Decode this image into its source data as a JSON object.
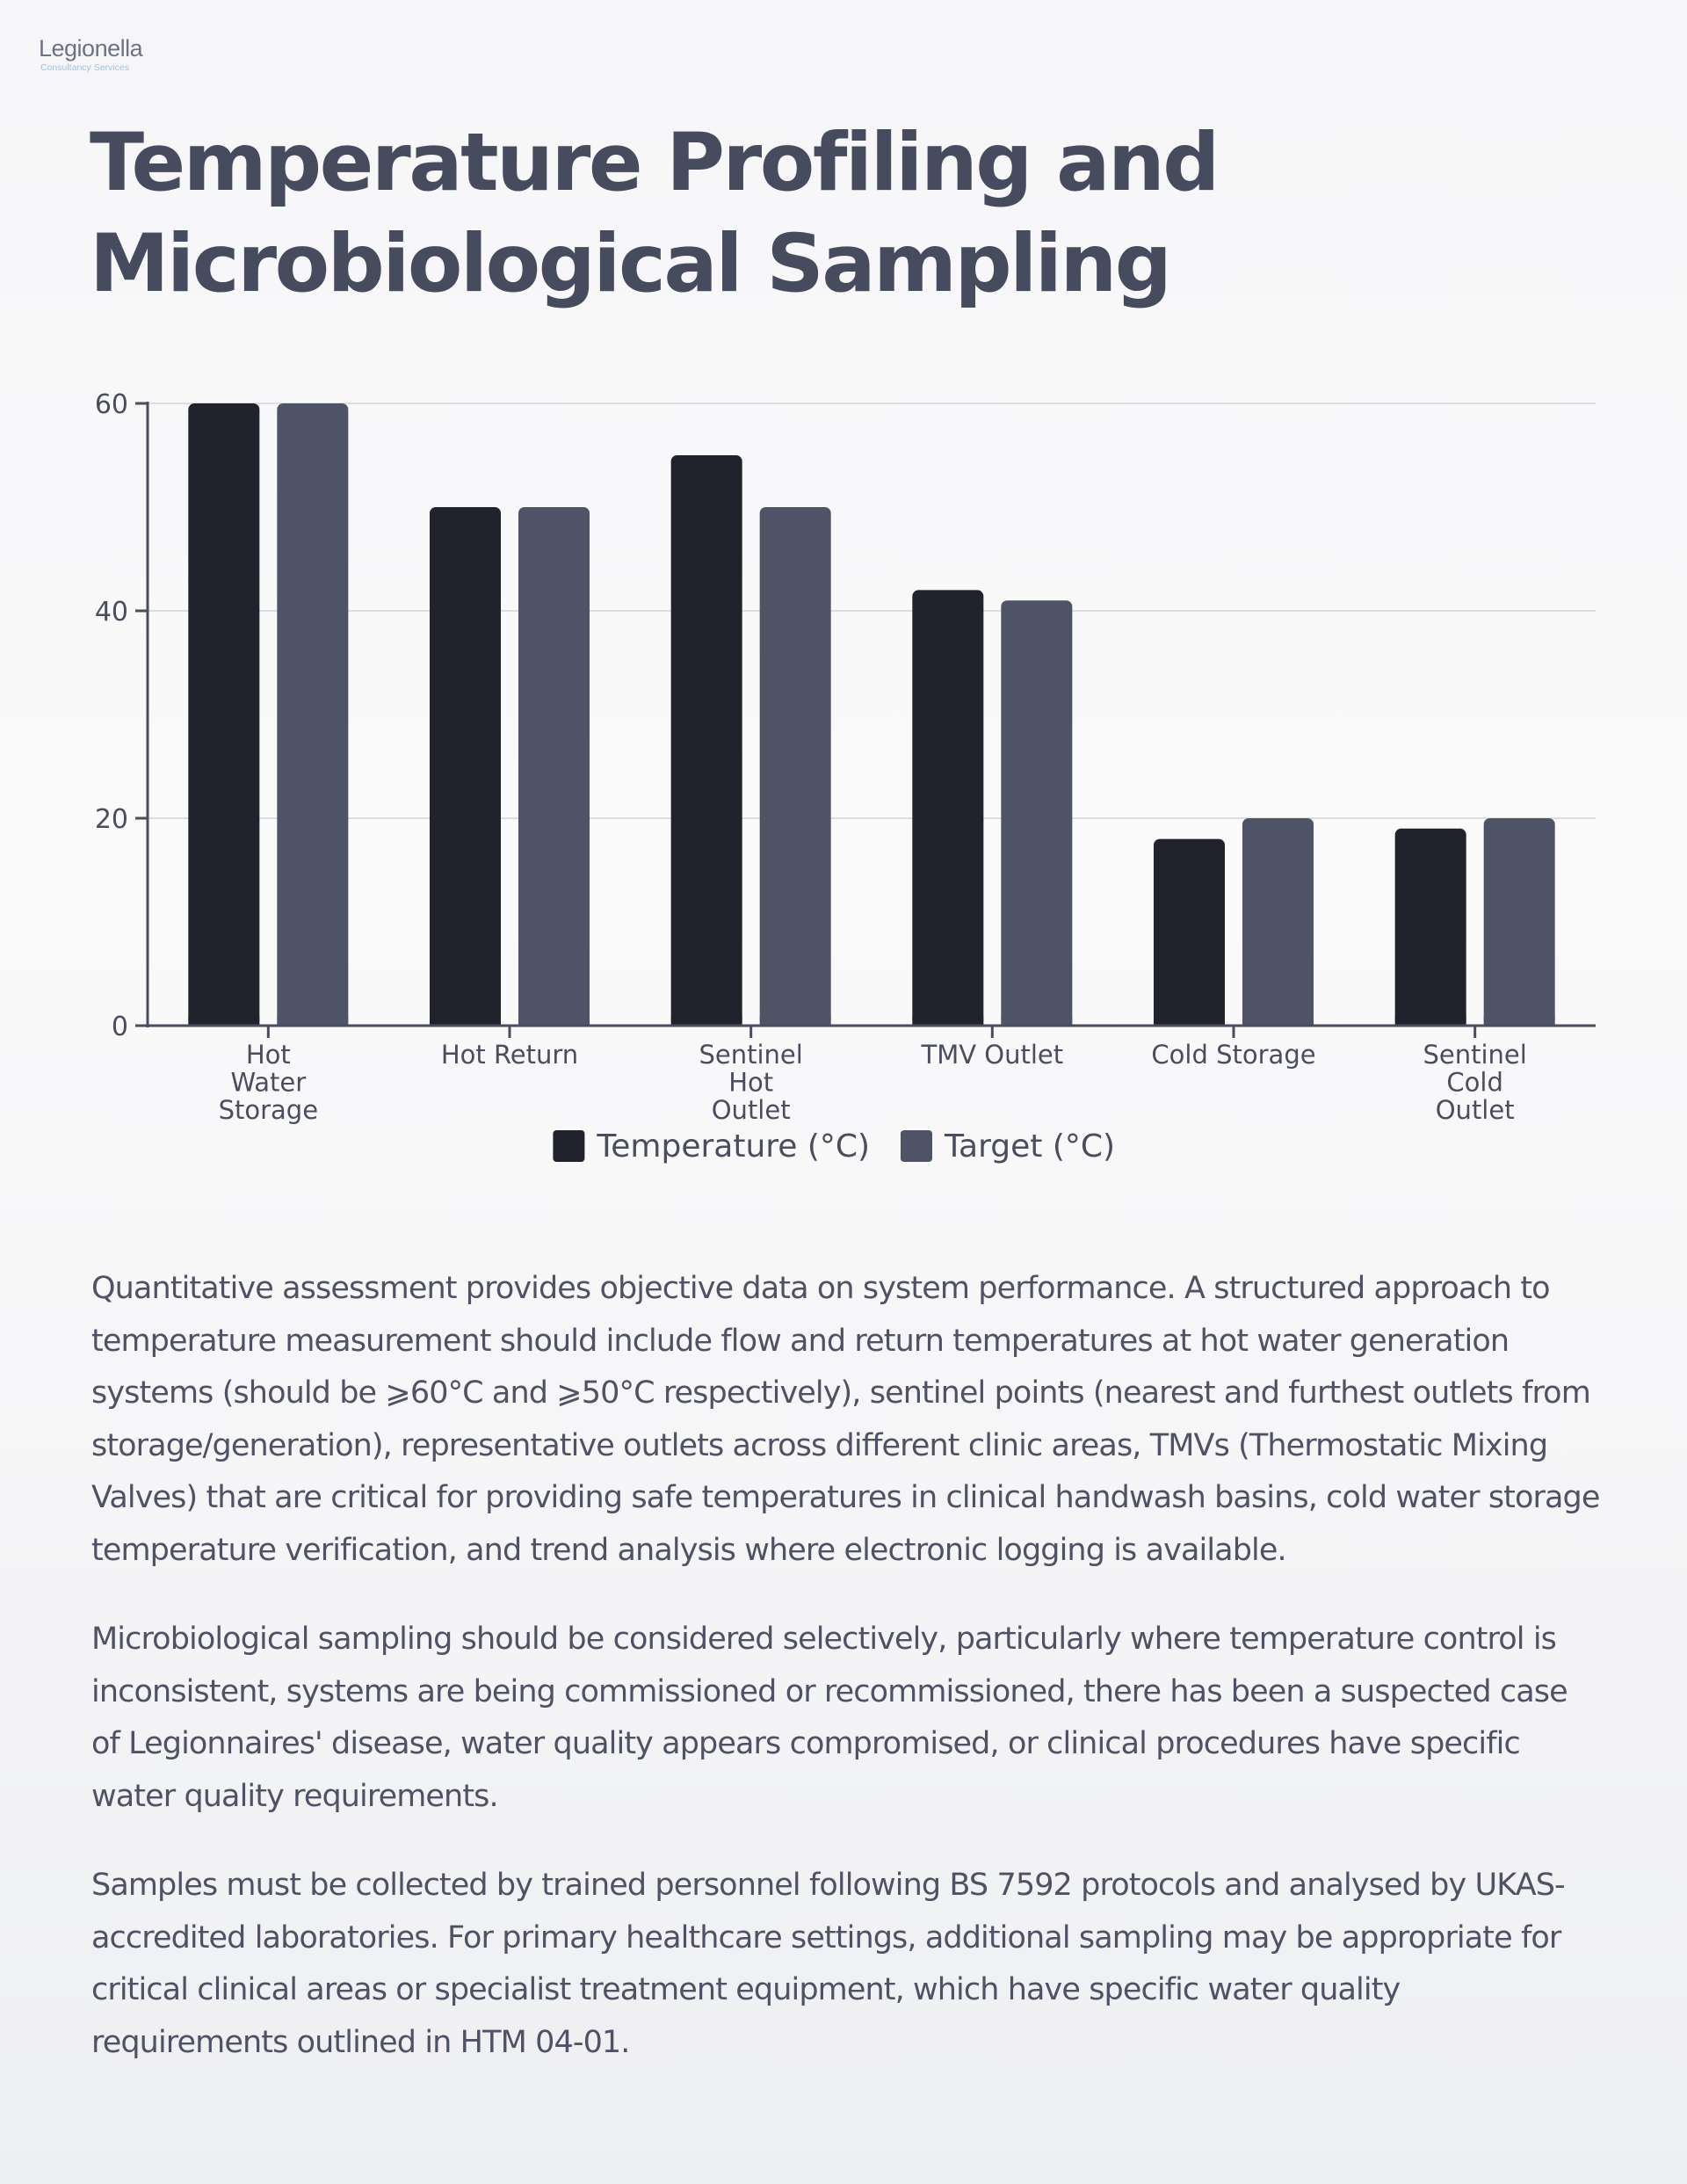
{
  "logo": {
    "name": "Legionella",
    "subtitle": "Consultancy Services"
  },
  "page_title": "Temperature Profiling and Microbiological Sampling",
  "colors": {
    "temperature": "#20232b",
    "target": "#4f5366",
    "title": "#464b5e",
    "grid": "#dcdde1",
    "axis": "#4a4d5e"
  },
  "chart_data": {
    "type": "bar",
    "categories": [
      "Hot Water Storage",
      "Hot Return",
      "Sentinel Hot Outlet",
      "TMV Outlet",
      "Cold Storage",
      "Sentinel Cold Outlet"
    ],
    "category_lines": [
      [
        "Hot",
        "Water",
        "Storage"
      ],
      [
        "Hot Return"
      ],
      [
        "Sentinel",
        "Hot",
        "Outlet"
      ],
      [
        "TMV Outlet"
      ],
      [
        "Cold Storage"
      ],
      [
        "Sentinel",
        "Cold",
        "Outlet"
      ]
    ],
    "series": [
      {
        "name": "Temperature (°C)",
        "values": [
          60,
          50,
          55,
          42,
          18,
          19
        ]
      },
      {
        "name": "Target (°C)",
        "values": [
          60,
          50,
          50,
          41,
          20,
          20
        ]
      }
    ],
    "title": "",
    "xlabel": "",
    "ylabel": "",
    "ylim": [
      0,
      60
    ],
    "yticks": [
      0,
      20,
      40,
      60
    ],
    "grid": true,
    "legend": "bottom-center"
  },
  "paragraphs": [
    "Quantitative assessment provides objective data on system performance. A structured approach to temperature measurement should include flow and return temperatures at hot water generation systems (should be ⩾60°C and ⩾50°C respectively), sentinel points (nearest and furthest outlets from storage/generation), representative outlets across different clinic areas, TMVs (Thermostatic Mixing Valves) that are critical for providing safe temperatures in clinical handwash basins, cold water storage temperature verification, and trend analysis where electronic logging is available.",
    "Microbiological sampling should be considered selectively, particularly where temperature control is inconsistent, systems are being commissioned or recommissioned, there has been a suspected case of Legionnaires' disease, water quality appears compromised, or clinical procedures have specific water quality requirements.",
    "Samples must be collected by trained personnel following BS 7592 protocols and analysed by UKAS-accredited laboratories. For primary healthcare settings, additional sampling may be appropriate for critical clinical areas or specialist treatment equipment, which have specific water quality requirements outlined in HTM 04-01."
  ]
}
